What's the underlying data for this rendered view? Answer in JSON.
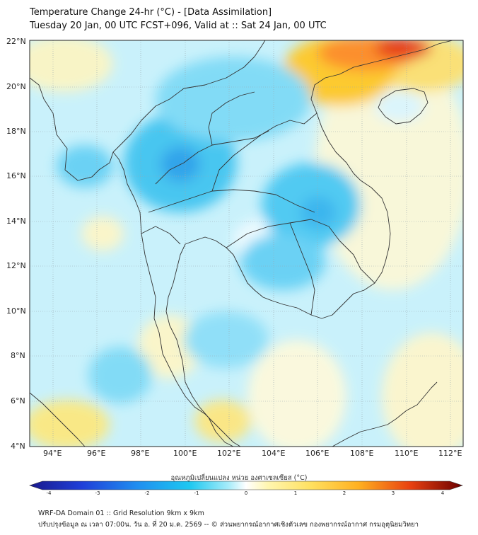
{
  "header": {
    "title_line1": "Temperature Change 24-hr (°C) - [Data Assimilation]",
    "title_line2": "Tuesday 20 Jan, 00 UTC FCST+096, Valid at :: Sat 24 Jan, 00 UTC"
  },
  "axes": {
    "lat_labels": [
      "22°N",
      "20°N",
      "18°N",
      "16°N",
      "14°N",
      "12°N",
      "10°N",
      "8°N",
      "6°N",
      "4°N"
    ],
    "lon_labels": [
      "94°E",
      "96°E",
      "98°E",
      "100°E",
      "102°E",
      "104°E",
      "106°E",
      "108°E",
      "110°E",
      "112°E"
    ]
  },
  "colorbar": {
    "label": "อุณหภูมิเปลี่ยนแปลง หน่วย องศาเซลเซียส (°C)",
    "ticks": [
      "-4",
      "-3",
      "-2",
      "-1",
      "0",
      "1",
      "2",
      "3",
      "4"
    ],
    "min": -4,
    "max": 4
  },
  "footer": {
    "line1": "WRF-DA Domain 01 :: Grid Resolution 9km x 9km",
    "line2": "ปรับปรุงข้อมูล ณ เวลา 07:00น. วัน อ. ที่ 20 ม.ค. 2569 -- © ส่วนพยากรณ์อากาศเชิงตัวเลข กองพยากรณ์อากาศ กรมอุตุนิยมวิทยา"
  },
  "colors": {
    "cold_deep": "#1a1a8c",
    "cold": "#1ec8f0",
    "neutral": "#ffffff",
    "warm": "#ffd040",
    "hot": "#cc1010"
  }
}
